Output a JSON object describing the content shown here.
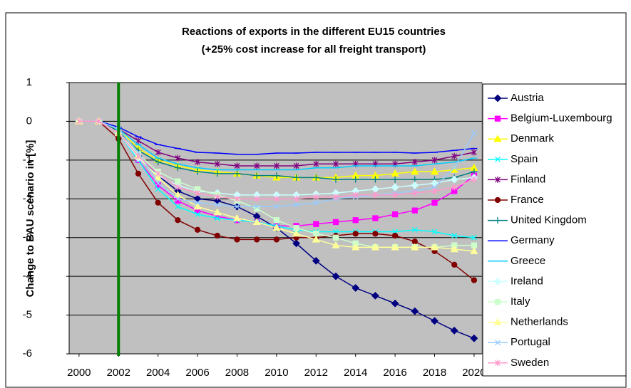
{
  "chart_data": {
    "type": "line",
    "title": "Reactions of exports in the different EU15 countries",
    "subtitle": "(+25% cost increase for all freight transport)",
    "y_label": "Change to BAU scenario in [%]",
    "x": [
      2000,
      2001,
      2002,
      2003,
      2004,
      2005,
      2006,
      2007,
      2008,
      2009,
      2010,
      2011,
      2012,
      2013,
      2014,
      2015,
      2016,
      2017,
      2018,
      2019,
      2020
    ],
    "xlim": [
      1999.5,
      2020.4
    ],
    "xticks": [
      2000,
      2002,
      2004,
      2006,
      2008,
      2010,
      2012,
      2014,
      2016,
      2018,
      2020
    ],
    "ylim": [
      -6,
      1
    ],
    "yticks": [
      -6,
      -5,
      -4,
      -3,
      -2,
      -1,
      0,
      1
    ],
    "grid": true,
    "legend": "right",
    "background": "#c0c0c0",
    "vline": {
      "x": 2002,
      "color": "#008000"
    },
    "series": [
      {
        "name": "Austria",
        "color": "#000080",
        "marker": "diamond",
        "values": [
          0,
          0,
          -0.3,
          -0.9,
          -1.4,
          -1.8,
          -2.0,
          -2.05,
          -2.2,
          -2.45,
          -2.75,
          -3.15,
          -3.6,
          -4.0,
          -4.3,
          -4.5,
          -4.7,
          -4.9,
          -5.15,
          -5.4,
          -5.6
        ]
      },
      {
        "name": "Belgium-Luxembourg",
        "color": "#ff00ff",
        "marker": "square",
        "values": [
          0,
          0,
          -0.3,
          -1.0,
          -1.65,
          -2.05,
          -2.3,
          -2.45,
          -2.55,
          -2.6,
          -2.7,
          -2.7,
          -2.65,
          -2.6,
          -2.55,
          -2.5,
          -2.4,
          -2.3,
          -2.1,
          -1.8,
          -1.4
        ]
      },
      {
        "name": "Denmark",
        "color": "#ffff00",
        "marker": "triangle",
        "values": [
          0,
          0,
          -0.2,
          -0.7,
          -1.0,
          -1.15,
          -1.25,
          -1.3,
          -1.35,
          -1.4,
          -1.45,
          -1.45,
          -1.45,
          -1.45,
          -1.4,
          -1.4,
          -1.35,
          -1.3,
          -1.3,
          -1.25,
          -1.2
        ]
      },
      {
        "name": "Spain",
        "color": "#00ffff",
        "marker": "x",
        "values": [
          0,
          0,
          -0.3,
          -1.0,
          -1.75,
          -2.2,
          -2.4,
          -2.5,
          -2.55,
          -2.6,
          -2.7,
          -2.8,
          -2.85,
          -2.85,
          -2.85,
          -2.85,
          -2.85,
          -2.8,
          -2.85,
          -2.95,
          -3.0
        ]
      },
      {
        "name": "Finland",
        "color": "#800080",
        "marker": "star",
        "values": [
          0,
          0,
          -0.2,
          -0.5,
          -0.8,
          -0.95,
          -1.05,
          -1.1,
          -1.15,
          -1.15,
          -1.15,
          -1.15,
          -1.1,
          -1.1,
          -1.1,
          -1.1,
          -1.1,
          -1.05,
          -1.0,
          -0.9,
          -0.8
        ]
      },
      {
        "name": "France",
        "color": "#800000",
        "marker": "circle",
        "values": [
          0,
          0,
          -0.45,
          -1.35,
          -2.1,
          -2.55,
          -2.8,
          -2.95,
          -3.05,
          -3.05,
          -3.05,
          -3.0,
          -3.0,
          -2.95,
          -2.9,
          -2.9,
          -2.95,
          -3.1,
          -3.35,
          -3.7,
          -4.1
        ]
      },
      {
        "name": "United Kingdom",
        "color": "#008080",
        "marker": "plus",
        "values": [
          0,
          0,
          -0.25,
          -0.75,
          -1.05,
          -1.2,
          -1.3,
          -1.35,
          -1.35,
          -1.4,
          -1.4,
          -1.45,
          -1.45,
          -1.5,
          -1.5,
          -1.5,
          -1.5,
          -1.5,
          -1.5,
          -1.45,
          -1.3
        ]
      },
      {
        "name": "Germany",
        "color": "#0000ff",
        "marker": "dash",
        "values": [
          0,
          0,
          -0.15,
          -0.4,
          -0.6,
          -0.7,
          -0.8,
          -0.82,
          -0.85,
          -0.85,
          -0.82,
          -0.82,
          -0.8,
          -0.8,
          -0.8,
          -0.8,
          -0.8,
          -0.82,
          -0.8,
          -0.75,
          -0.7
        ]
      },
      {
        "name": "Greece",
        "color": "#00ccff",
        "marker": "dash",
        "values": [
          0,
          0,
          -0.2,
          -0.6,
          -0.95,
          -1.1,
          -1.2,
          -1.25,
          -1.25,
          -1.25,
          -1.25,
          -1.25,
          -1.2,
          -1.2,
          -1.15,
          -1.15,
          -1.15,
          -1.15,
          -1.1,
          -1.05,
          -0.95
        ]
      },
      {
        "name": "Ireland",
        "color": "#ccffff",
        "marker": "diamond",
        "values": [
          0,
          0,
          -0.3,
          -0.95,
          -1.4,
          -1.65,
          -1.8,
          -1.85,
          -1.9,
          -1.9,
          -1.9,
          -1.9,
          -1.88,
          -1.85,
          -1.8,
          -1.75,
          -1.7,
          -1.65,
          -1.6,
          -1.5,
          -1.45
        ]
      },
      {
        "name": "Italy",
        "color": "#ccffcc",
        "marker": "square",
        "values": [
          0,
          0,
          -0.3,
          -0.85,
          -1.3,
          -1.55,
          -1.75,
          -1.9,
          -2.05,
          -2.25,
          -2.55,
          -2.75,
          -2.9,
          -3.0,
          -3.15,
          -3.25,
          -3.25,
          -3.25,
          -3.25,
          -3.2,
          -3.2
        ]
      },
      {
        "name": "Netherlands",
        "color": "#ffff99",
        "marker": "triangle",
        "values": [
          0,
          0,
          -0.3,
          -0.9,
          -1.45,
          -1.9,
          -2.2,
          -2.35,
          -2.5,
          -2.6,
          -2.75,
          -2.9,
          -3.05,
          -3.2,
          -3.25,
          -3.25,
          -3.25,
          -3.25,
          -3.25,
          -3.3,
          -3.35
        ]
      },
      {
        "name": "Portugal",
        "color": "#99ccff",
        "marker": "x",
        "values": [
          0,
          0,
          -0.2,
          -0.8,
          -1.6,
          -2.0,
          -2.1,
          -2.15,
          -2.2,
          -2.2,
          -2.2,
          -2.15,
          -2.1,
          -2.0,
          -1.95,
          -1.9,
          -1.85,
          -1.8,
          -1.7,
          -1.2,
          -0.3
        ]
      },
      {
        "name": "Sweden",
        "color": "#ff99cc",
        "marker": "star",
        "values": [
          0,
          0,
          -0.3,
          -0.9,
          -1.35,
          -1.7,
          -1.85,
          -1.95,
          -2.0,
          -2.0,
          -2.0,
          -2.0,
          -1.95,
          -1.95,
          -1.9,
          -1.9,
          -1.9,
          -1.85,
          -1.8,
          -1.7,
          -1.5
        ]
      }
    ]
  }
}
